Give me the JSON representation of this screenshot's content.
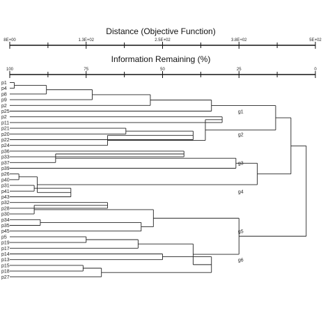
{
  "chart_data": {
    "type": "dendrogram",
    "x_axis_top": {
      "title": "Distance (Objective Function)",
      "tick_labels": [
        "8E+00",
        "1.3E+02",
        "2.5E+02",
        "3.8E+02",
        "5E+02"
      ],
      "tick_values": [
        8,
        130,
        250,
        380,
        500
      ],
      "minor_ticks": 9
    },
    "x_axis_second": {
      "title": "Information Remaining (%)",
      "tick_labels": [
        "100",
        "75",
        "50",
        "25",
        "0"
      ],
      "tick_values": [
        100,
        75,
        50,
        25,
        0
      ],
      "minor_ticks": 9
    },
    "leaves": [
      "p1",
      "p4",
      "p8",
      "p9",
      "p2",
      "p25",
      "p2",
      "p11",
      "p21",
      "p20",
      "p22",
      "p24",
      "p36",
      "p33",
      "p37",
      "p39",
      "p26",
      "p40",
      "p31",
      "p41",
      "p43",
      "p32",
      "p28",
      "p30",
      "p34",
      "p35",
      "p45",
      "p5",
      "p19",
      "p17",
      "p14",
      "p13",
      "p15",
      "p18",
      "p27"
    ],
    "merges": [
      {
        "a": "p1",
        "b": "p4",
        "info": 98.5
      },
      {
        "a": "m0",
        "b": "p8",
        "info": 88
      },
      {
        "a": "m1",
        "b": "p9",
        "info": 73
      },
      {
        "a": "m2",
        "b": "p2",
        "info": 54
      },
      {
        "a": "m3",
        "b": "p25",
        "info": 34
      },
      {
        "a": "p2",
        "b": "p11",
        "info": 30.5
      },
      {
        "a": "p21",
        "b": "p20",
        "info": 62
      },
      {
        "a": "m6",
        "b": "p22",
        "info": 40
      },
      {
        "a": "m7",
        "b": "p24",
        "info": 68
      },
      {
        "a": "m5",
        "b": "m8",
        "info": 36
      },
      {
        "a": "p36",
        "b": "p33",
        "info": 43
      },
      {
        "a": "m10",
        "b": "p37",
        "info": 85
      },
      {
        "a": "m11",
        "b": "p39",
        "info": 26
      },
      {
        "a": "p26",
        "b": "p40",
        "info": 97
      },
      {
        "a": "p31",
        "b": "p41",
        "info": 92
      },
      {
        "a": "m14",
        "b": "p43",
        "info": 80
      },
      {
        "a": "m13",
        "b": "m15",
        "info": 91
      },
      {
        "a": "m12",
        "b": "m16",
        "info": 19
      },
      {
        "a": "m4",
        "b": "m9",
        "info": 13
      },
      {
        "a": "m18",
        "b": "m17",
        "info": 8
      },
      {
        "a": "p32",
        "b": "p28",
        "info": 68
      },
      {
        "a": "m20",
        "b": "p30",
        "info": 92
      },
      {
        "a": "p34",
        "b": "p35",
        "info": 90
      },
      {
        "a": "m22",
        "b": "p45",
        "info": 57
      },
      {
        "a": "m21",
        "b": "m23",
        "info": 53
      },
      {
        "a": "p5",
        "b": "p19",
        "info": 75
      },
      {
        "a": "m25",
        "b": "p17",
        "info": 58
      },
      {
        "a": "p14",
        "b": "p13",
        "info": 50
      },
      {
        "a": "p15",
        "b": "p18",
        "info": 76
      },
      {
        "a": "m28",
        "b": "p27",
        "info": 70
      },
      {
        "a": "m27",
        "b": "m29",
        "info": 34
      },
      {
        "a": "m26",
        "b": "m30",
        "info": 40
      },
      {
        "a": "m24",
        "b": "m31",
        "info": 25
      },
      {
        "a": "m19",
        "b": "m32",
        "info": 3
      }
    ],
    "group_labels": [
      {
        "label": "g1",
        "after_leaf": 5,
        "info": 26
      },
      {
        "label": "g2",
        "after_leaf": 9,
        "info": 26
      },
      {
        "label": "g3",
        "after_leaf": 14,
        "info": 26
      },
      {
        "label": "g4",
        "after_leaf": 19,
        "info": 26
      },
      {
        "label": "g5",
        "after_leaf": 26,
        "info": 26
      },
      {
        "label": "g6",
        "after_leaf": 31,
        "info": 26
      }
    ]
  }
}
